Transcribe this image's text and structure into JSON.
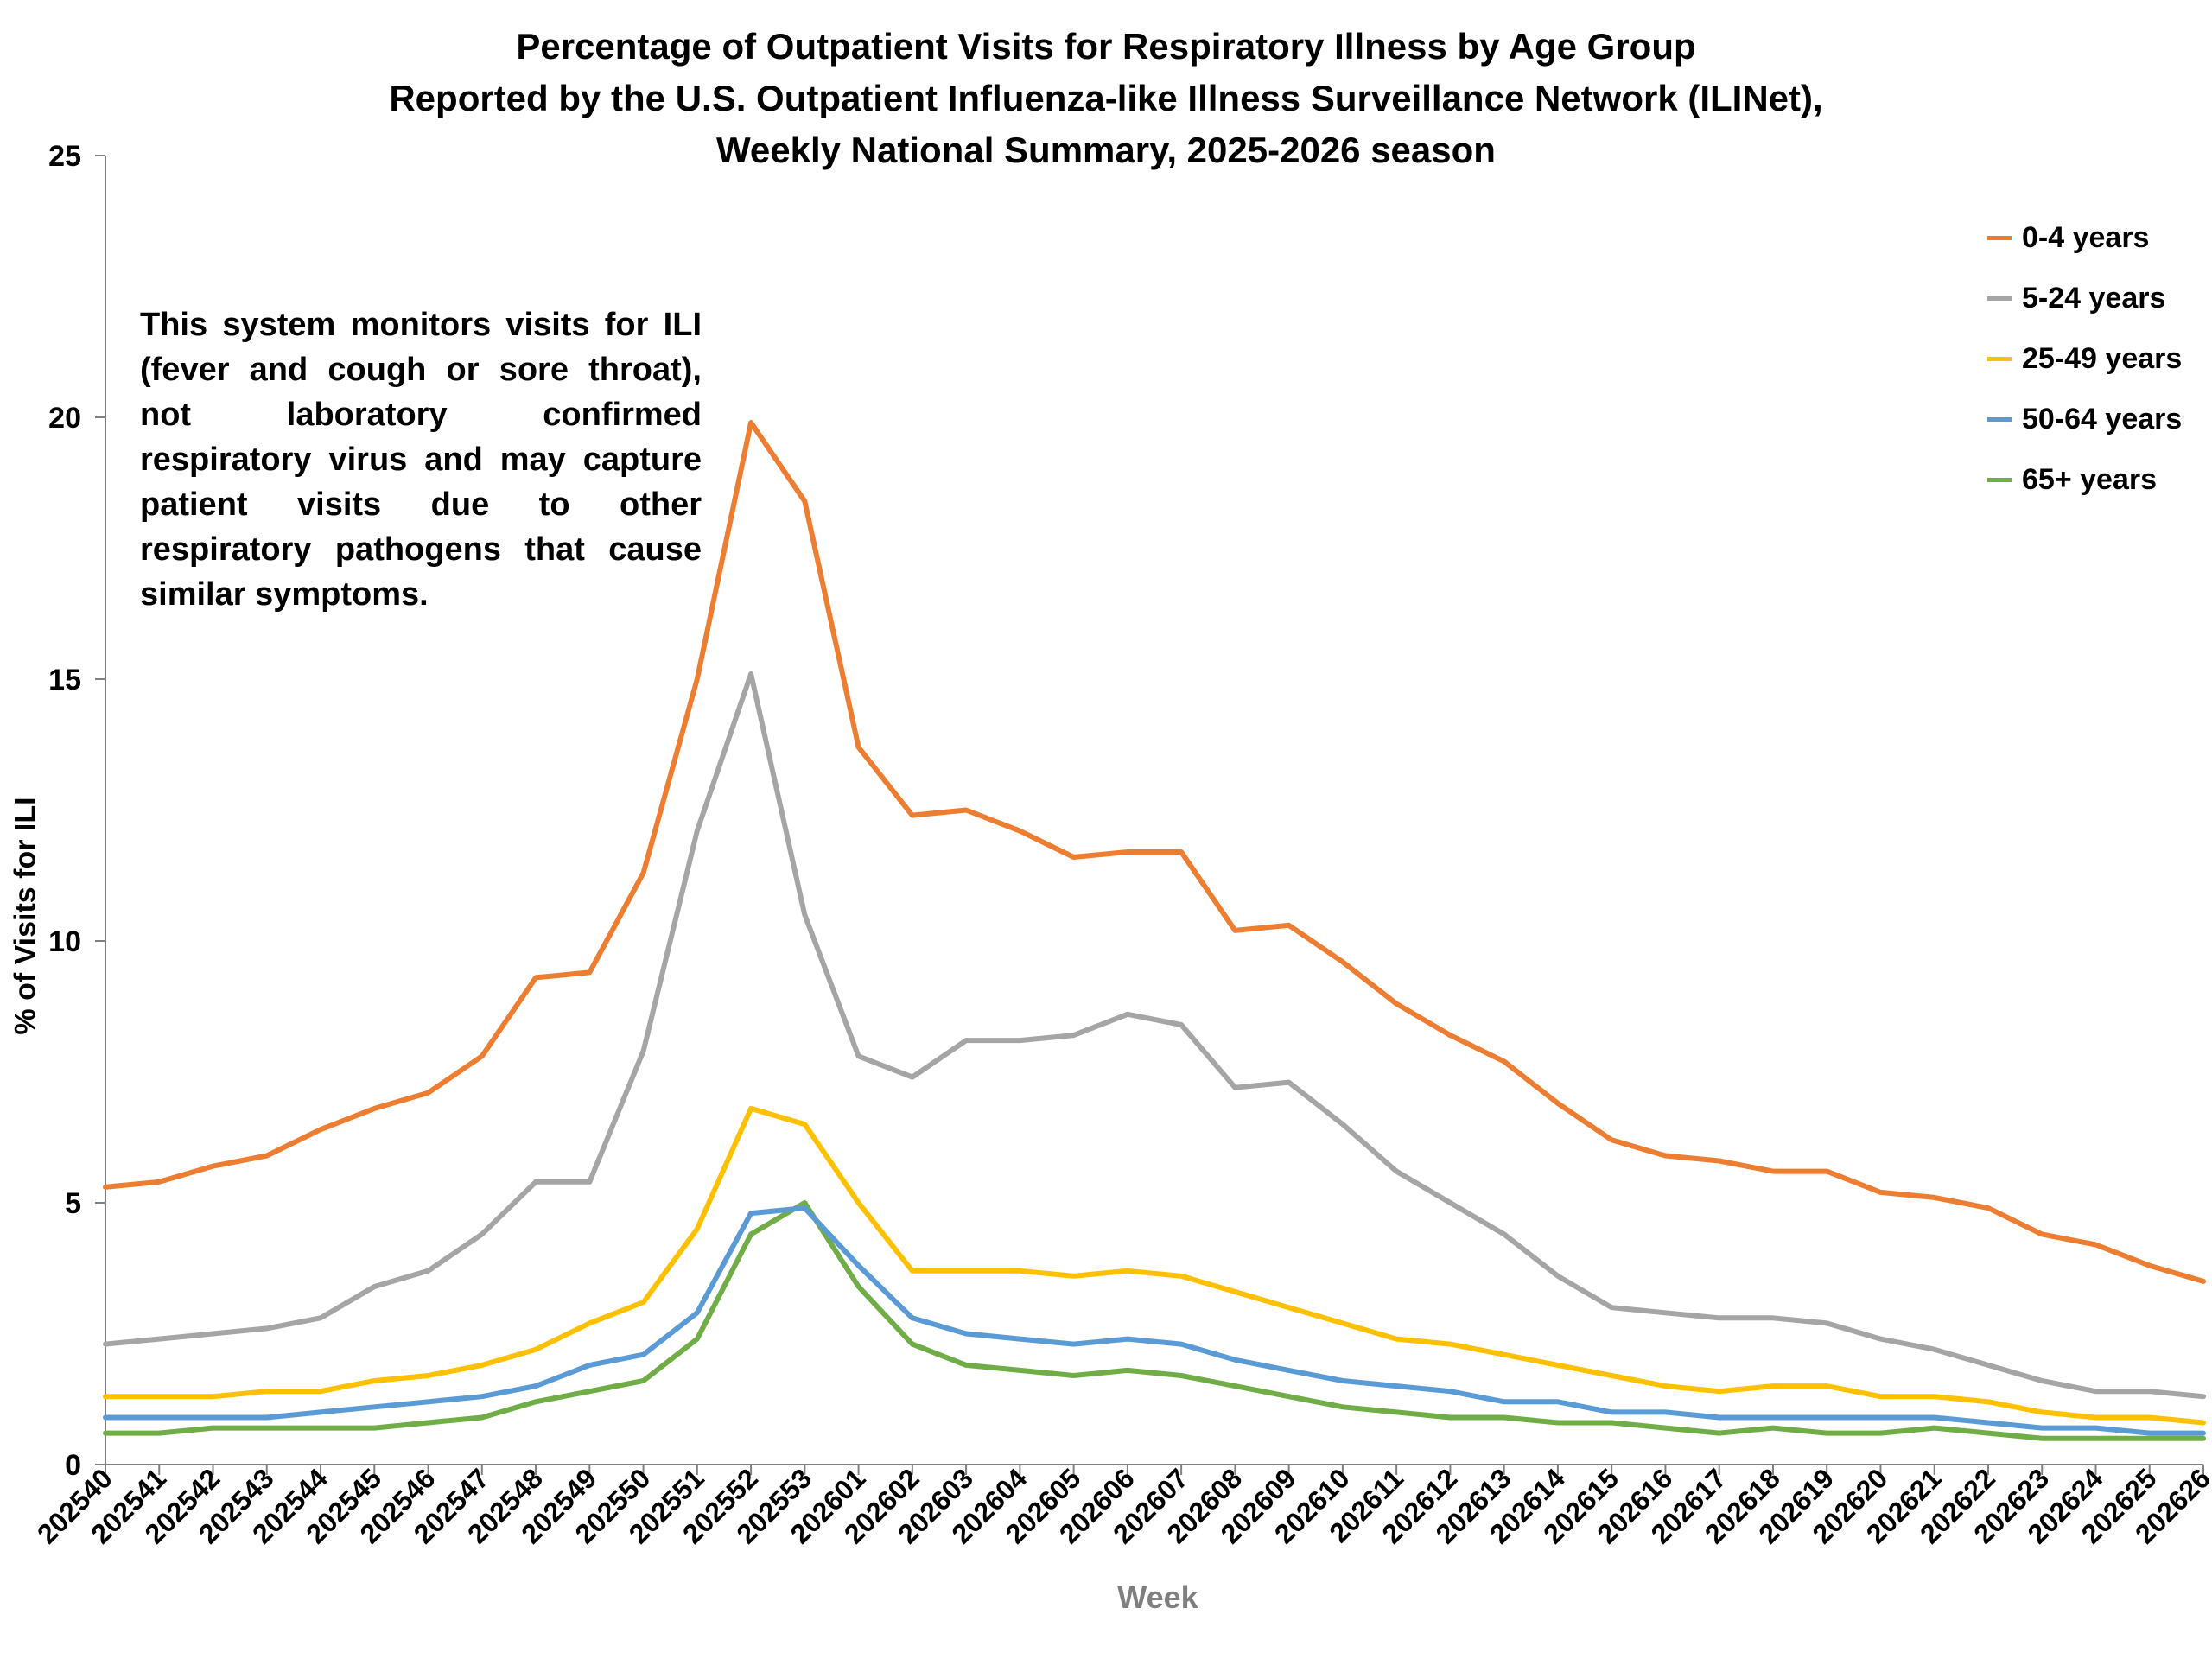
{
  "chart_data": {
    "type": "line",
    "title_lines": [
      "Percentage of Outpatient Visits for Respiratory Illness by Age Group",
      "Reported by the U.S. Outpatient Influenza-like Illness Surveillance Network (ILINet),",
      "Weekly National Summary, 2025-2026 season"
    ],
    "xlabel": "Week",
    "ylabel": "% of Visits for ILI",
    "ylim": [
      0,
      25
    ],
    "yticks": [
      0,
      5,
      10,
      15,
      20,
      25
    ],
    "legend_position": "top-right",
    "grid": false,
    "annotation": "This system monitors visits for ILI (fever and cough or sore throat), not laboratory confirmed respiratory virus and may capture patient visits due to other respiratory pathogens that cause similar symptoms.",
    "x": [
      "202540",
      "202541",
      "202542",
      "202543",
      "202544",
      "202545",
      "202546",
      "202547",
      "202548",
      "202549",
      "202550",
      "202551",
      "202552",
      "202553",
      "202601",
      "202602",
      "202603",
      "202604",
      "202605",
      "202606",
      "202607",
      "202608",
      "202609",
      "202610",
      "202611",
      "202612",
      "202613",
      "202614",
      "202615",
      "202616",
      "202617",
      "202618",
      "202619",
      "202620",
      "202621",
      "202622",
      "202623",
      "202624",
      "202625",
      "202626"
    ],
    "series": [
      {
        "name": "0-4 years",
        "color": "#ED7D31",
        "values": [
          5.3,
          5.4,
          5.7,
          5.9,
          6.4,
          6.8,
          7.1,
          7.8,
          9.3,
          9.4,
          11.3,
          15.0,
          19.9,
          18.4,
          13.7,
          12.4,
          12.5,
          12.1,
          11.6,
          11.7,
          11.7,
          10.2,
          10.3,
          9.6,
          8.8,
          8.2,
          7.7,
          6.9,
          6.2,
          5.9,
          5.8,
          5.6,
          5.6,
          5.2,
          5.1,
          4.9,
          4.4,
          4.2,
          3.8,
          3.5
        ]
      },
      {
        "name": "5-24 years",
        "color": "#A5A5A5",
        "values": [
          2.3,
          2.4,
          2.5,
          2.6,
          2.8,
          3.4,
          3.7,
          4.4,
          5.4,
          5.4,
          7.9,
          12.1,
          15.1,
          10.5,
          7.8,
          7.4,
          8.1,
          8.1,
          8.2,
          8.6,
          8.4,
          7.2,
          7.3,
          6.5,
          5.6,
          5.0,
          4.4,
          3.6,
          3.0,
          2.9,
          2.8,
          2.8,
          2.7,
          2.4,
          2.2,
          1.9,
          1.6,
          1.4,
          1.4,
          1.3
        ]
      },
      {
        "name": "25-49 years",
        "color": "#FFC000",
        "values": [
          1.3,
          1.3,
          1.3,
          1.4,
          1.4,
          1.6,
          1.7,
          1.9,
          2.2,
          2.7,
          3.1,
          4.5,
          6.8,
          6.5,
          5.0,
          3.7,
          3.7,
          3.7,
          3.6,
          3.7,
          3.6,
          3.3,
          3.0,
          2.7,
          2.4,
          2.3,
          2.1,
          1.9,
          1.7,
          1.5,
          1.4,
          1.5,
          1.5,
          1.3,
          1.3,
          1.2,
          1.0,
          0.9,
          0.9,
          0.8
        ]
      },
      {
        "name": "50-64 years",
        "color": "#5B9BD5",
        "values": [
          0.9,
          0.9,
          0.9,
          0.9,
          1.0,
          1.1,
          1.2,
          1.3,
          1.5,
          1.9,
          2.1,
          2.9,
          4.8,
          4.9,
          3.8,
          2.8,
          2.5,
          2.4,
          2.3,
          2.4,
          2.3,
          2.0,
          1.8,
          1.6,
          1.5,
          1.4,
          1.2,
          1.2,
          1.0,
          1.0,
          0.9,
          0.9,
          0.9,
          0.9,
          0.9,
          0.8,
          0.7,
          0.7,
          0.6,
          0.6
        ]
      },
      {
        "name": "65+ years",
        "color": "#70AD47",
        "values": [
          0.6,
          0.6,
          0.7,
          0.7,
          0.7,
          0.7,
          0.8,
          0.9,
          1.2,
          1.4,
          1.6,
          2.4,
          4.4,
          5.0,
          3.4,
          2.3,
          1.9,
          1.8,
          1.7,
          1.8,
          1.7,
          1.5,
          1.3,
          1.1,
          1.0,
          0.9,
          0.9,
          0.8,
          0.8,
          0.7,
          0.6,
          0.7,
          0.6,
          0.6,
          0.7,
          0.6,
          0.5,
          0.5,
          0.5,
          0.5
        ]
      }
    ]
  }
}
